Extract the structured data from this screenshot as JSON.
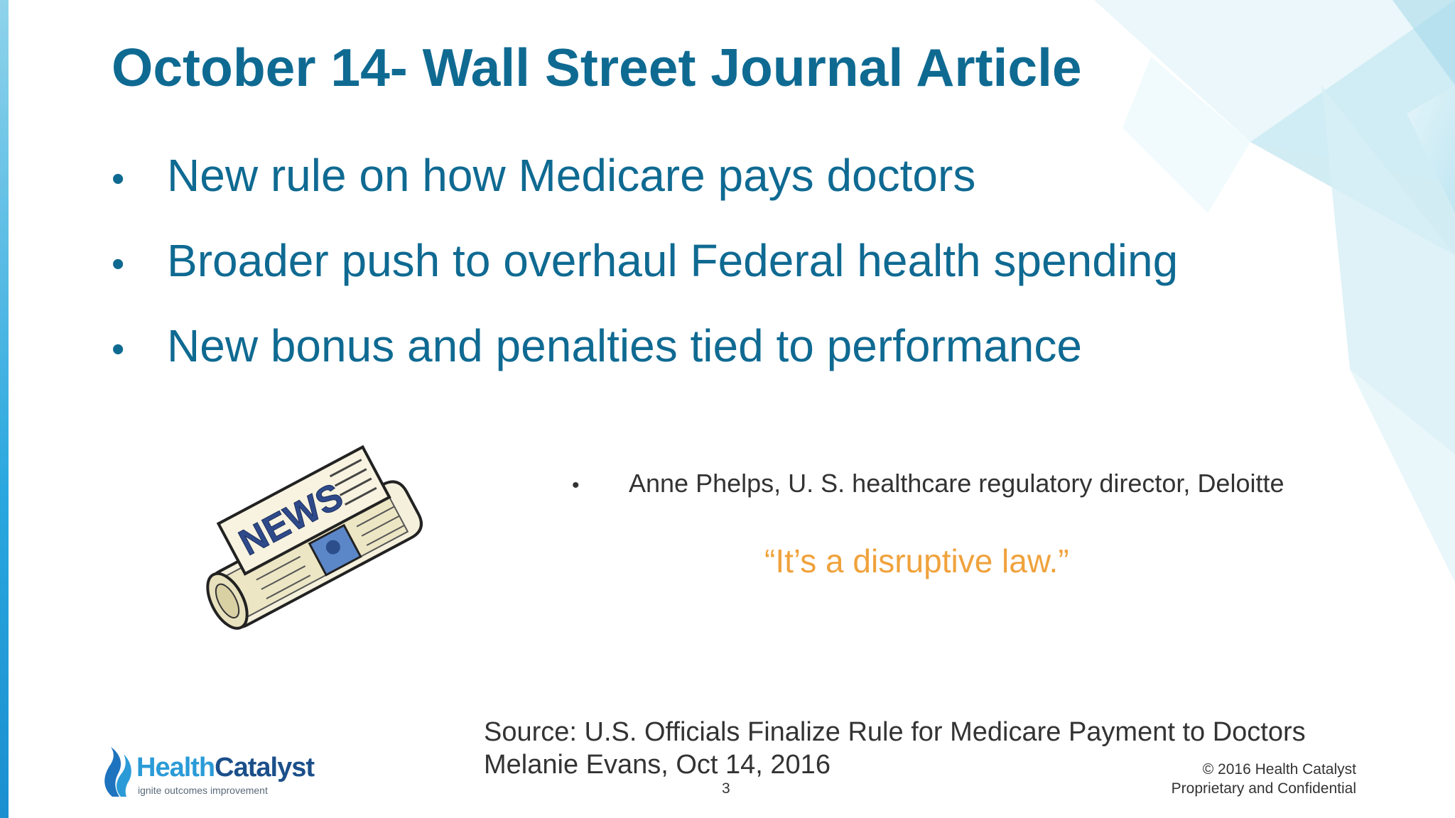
{
  "slide": {
    "title": "October 14- Wall Street Journal Article",
    "bullets": [
      "New rule on how Medicare pays doctors",
      "Broader push to overhaul Federal health spending",
      "New bonus and penalties tied to performance"
    ],
    "bullet_glyph": "•",
    "attribution": "Anne Phelps, U. S. healthcare regulatory director, Deloitte",
    "quote": "“It’s a disruptive law.”",
    "source_line1": "Source: U.S. Officials Finalize Rule for Medicare Payment to Doctors",
    "source_line2": "Melanie Evans, Oct 14, 2016",
    "page_number": "3",
    "copyright_line1": "© 2016 Health Catalyst",
    "copyright_line2": "Proprietary and Confidential"
  },
  "newspaper": {
    "masthead": "NEWS"
  },
  "logo": {
    "name_part1": "Health",
    "name_part2": "Catalyst",
    "tagline": "ignite outcomes improvement"
  },
  "colors": {
    "title": "#0f6a92",
    "quote": "#f0a23c",
    "accent_bar": "#2aa7df"
  },
  "icons": {
    "newspaper": "newspaper-icon",
    "logo": "flame-logo-icon"
  }
}
